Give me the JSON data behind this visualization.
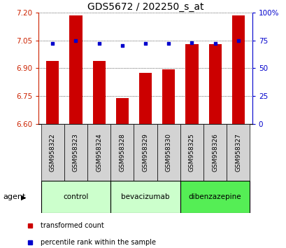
{
  "title": "GDS5672 / 202250_s_at",
  "samples": [
    "GSM958322",
    "GSM958323",
    "GSM958324",
    "GSM958328",
    "GSM958329",
    "GSM958330",
    "GSM958325",
    "GSM958326",
    "GSM958327"
  ],
  "red_values": [
    6.94,
    7.185,
    6.94,
    6.74,
    6.875,
    6.895,
    7.03,
    7.03,
    7.185
  ],
  "blue_values": [
    72,
    75,
    72,
    70,
    72,
    72,
    73,
    72,
    75
  ],
  "ylim_left": [
    6.6,
    7.2
  ],
  "ylim_right": [
    0,
    100
  ],
  "yticks_left": [
    6.6,
    6.75,
    6.9,
    7.05,
    7.2
  ],
  "yticks_right": [
    0,
    25,
    50,
    75,
    100
  ],
  "group_configs": [
    {
      "indices": [
        0,
        1,
        2
      ],
      "label": "control",
      "color": "#ccffcc"
    },
    {
      "indices": [
        3,
        4,
        5
      ],
      "label": "bevacizumab",
      "color": "#ccffcc"
    },
    {
      "indices": [
        6,
        7,
        8
      ],
      "label": "dibenzazepine",
      "color": "#55ee55"
    }
  ],
  "bar_color": "#cc0000",
  "dot_color": "#0000cc",
  "bar_width": 0.55,
  "grid_color": "#000000",
  "legend_red": "transformed count",
  "legend_blue": "percentile rank within the sample",
  "agent_label": "agent",
  "title_fontsize": 10,
  "tick_fontsize": 7.5,
  "sample_fontsize": 6.5
}
